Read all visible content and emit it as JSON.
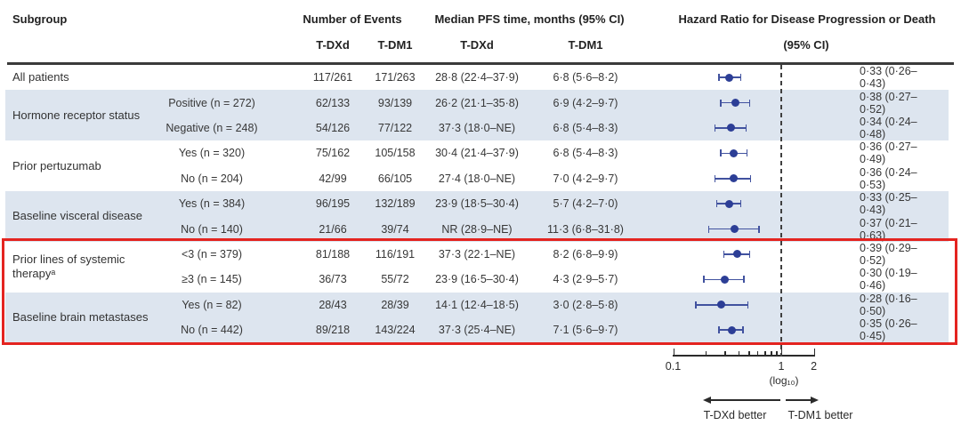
{
  "colors": {
    "marker": "#2c3e96",
    "ci_line": "#41529f",
    "band": "#dde5ef",
    "highlight_box": "#e42420",
    "reference_line": "#3f3f3f"
  },
  "header": {
    "col_subgroup": "Subgroup",
    "col_events": "Number of Events",
    "col_pfs": "Median PFS time, months (95% CI)",
    "col_hr_line1": "Hazard Ratio for Disease Progression or Death",
    "col_hr_line2": "(95% CI)",
    "sub_events_tdxd": "T-DXd",
    "sub_events_tdm1": "T-DM1",
    "sub_pfs_tdxd": "T-DXd",
    "sub_pfs_tdm1": "T-DM1"
  },
  "groups": [
    {
      "label": "All patients",
      "start": 0,
      "span": 1,
      "band": false
    },
    {
      "label": "Hormone receptor status",
      "start": 1,
      "span": 2,
      "band": true
    },
    {
      "label": "Prior pertuzumab",
      "start": 3,
      "span": 2,
      "band": false
    },
    {
      "label": "Baseline visceral disease",
      "start": 5,
      "span": 2,
      "band": true
    },
    {
      "label": "Prior lines of systemic therapyᵃ",
      "start": 7,
      "span": 2,
      "band": false
    },
    {
      "label": "Baseline brain metastases",
      "start": 9,
      "span": 2,
      "band": true
    }
  ],
  "chart_data": {
    "type": "scatter",
    "subtype": "forest-plot",
    "title": "",
    "x_axis": {
      "scale": "log10",
      "min": 0.1,
      "max": 2,
      "label": "(log₁₀)",
      "reference_line": 1,
      "major_ticks": [
        0.1,
        1,
        2
      ],
      "major_tick_labels": [
        "0.1",
        "1",
        "2"
      ],
      "minor_ticks": [
        0.2,
        0.3,
        0.4,
        0.5,
        0.6,
        0.7,
        0.8,
        0.9
      ]
    },
    "direction_labels": {
      "left": "T-DXd better",
      "right": "T-DM1 better"
    },
    "highlighted_rows": [
      7,
      8,
      9,
      10
    ],
    "rows": [
      {
        "category": "",
        "events_tdxd": "117/261",
        "events_tdm1": "171/263",
        "pfs_tdxd": "28·8 (22·4–37·9)",
        "pfs_tdm1": "6·8 (5·6–8·2)",
        "hr": 0.33,
        "ci_low": 0.26,
        "ci_high": 0.43,
        "hr_text": "0·33 (0·26–0·43)",
        "band": false
      },
      {
        "category": "Positive (n = 272)",
        "events_tdxd": "62/133",
        "events_tdm1": "93/139",
        "pfs_tdxd": "26·2 (21·1–35·8)",
        "pfs_tdm1": "6·9 (4·2–9·7)",
        "hr": 0.38,
        "ci_low": 0.27,
        "ci_high": 0.52,
        "hr_text": "0·38 (0·27–0·52)",
        "band": true
      },
      {
        "category": "Negative (n = 248)",
        "events_tdxd": "54/126",
        "events_tdm1": "77/122",
        "pfs_tdxd": "37·3 (18·0–NE)",
        "pfs_tdm1": "6·8 (5·4–8·3)",
        "hr": 0.34,
        "ci_low": 0.24,
        "ci_high": 0.48,
        "hr_text": "0·34 (0·24–0·48)",
        "band": true
      },
      {
        "category": "Yes (n = 320)",
        "events_tdxd": "75/162",
        "events_tdm1": "105/158",
        "pfs_tdxd": "30·4 (21·4–37·9)",
        "pfs_tdm1": "6·8 (5·4–8·3)",
        "hr": 0.36,
        "ci_low": 0.27,
        "ci_high": 0.49,
        "hr_text": "0·36 (0·27–0·49)",
        "band": false
      },
      {
        "category": "No (n = 204)",
        "events_tdxd": "42/99",
        "events_tdm1": "66/105",
        "pfs_tdxd": "27·4 (18·0–NE)",
        "pfs_tdm1": "7·0 (4·2–9·7)",
        "hr": 0.36,
        "ci_low": 0.24,
        "ci_high": 0.53,
        "hr_text": "0·36 (0·24–0·53)",
        "band": false
      },
      {
        "category": "Yes (n = 384)",
        "events_tdxd": "96/195",
        "events_tdm1": "132/189",
        "pfs_tdxd": "23·9 (18·5–30·4)",
        "pfs_tdm1": "5·7 (4·2–7·0)",
        "hr": 0.33,
        "ci_low": 0.25,
        "ci_high": 0.43,
        "hr_text": "0·33 (0·25–0·43)",
        "band": true
      },
      {
        "category": "No (n = 140)",
        "events_tdxd": "21/66",
        "events_tdm1": "39/74",
        "pfs_tdxd": "NR (28·9–NE)",
        "pfs_tdm1": "11·3 (6·8–31·8)",
        "hr": 0.37,
        "ci_low": 0.21,
        "ci_high": 0.63,
        "hr_text": "0·37 (0·21–0·63)",
        "band": true
      },
      {
        "category": "<3 (n = 379)",
        "events_tdxd": "81/188",
        "events_tdm1": "116/191",
        "pfs_tdxd": "37·3 (22·1–NE)",
        "pfs_tdm1": "8·2 (6·8–9·9)",
        "hr": 0.39,
        "ci_low": 0.29,
        "ci_high": 0.52,
        "hr_text": "0·39 (0·29–0·52)",
        "band": false
      },
      {
        "category": "≥3 (n = 145)",
        "events_tdxd": "36/73",
        "events_tdm1": "55/72",
        "pfs_tdxd": "23·9 (16·5–30·4)",
        "pfs_tdm1": "4·3 (2·9–5·7)",
        "hr": 0.3,
        "ci_low": 0.19,
        "ci_high": 0.46,
        "hr_text": "0·30 (0·19–0·46)",
        "band": false
      },
      {
        "category": "Yes (n = 82)",
        "events_tdxd": "28/43",
        "events_tdm1": "28/39",
        "pfs_tdxd": "14·1 (12·4–18·5)",
        "pfs_tdm1": "3·0 (2·8–5·8)",
        "hr": 0.28,
        "ci_low": 0.16,
        "ci_high": 0.5,
        "hr_text": "0·28 (0·16–0·50)",
        "band": true
      },
      {
        "category": "No (n = 442)",
        "events_tdxd": "89/218",
        "events_tdm1": "143/224",
        "pfs_tdxd": "37·3 (25·4–NE)",
        "pfs_tdm1": "7·1 (5·6–9·7)",
        "hr": 0.35,
        "ci_low": 0.26,
        "ci_high": 0.45,
        "hr_text": "0·35 (0·26–0·45)",
        "band": true
      }
    ]
  }
}
